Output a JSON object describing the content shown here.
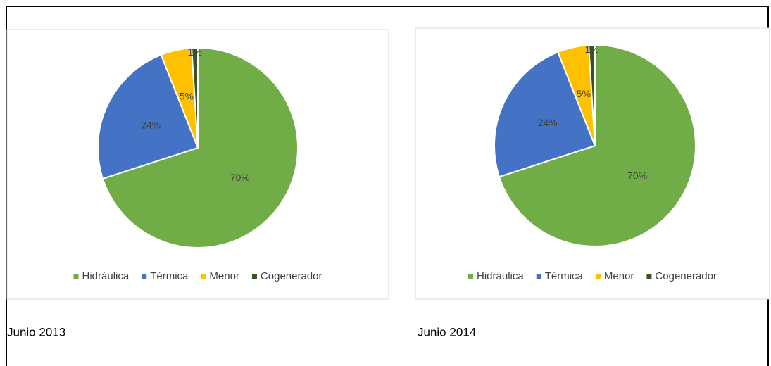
{
  "chart_data": [
    {
      "type": "pie",
      "categories": [
        "Hidráulica",
        "Térmica",
        "Menor",
        "Cogenerador"
      ],
      "values": [
        70,
        24,
        5,
        1
      ],
      "value_labels": [
        "70%",
        "24%",
        "5%",
        "1%"
      ],
      "colors": [
        "#70ad47",
        "#4472c4",
        "#ffc000",
        "#375623"
      ],
      "legend": "bottom",
      "caption": "Junio 2013"
    },
    {
      "type": "pie",
      "categories": [
        "Hidráulica",
        "Térmica",
        "Menor",
        "Cogenerador"
      ],
      "values": [
        70,
        24,
        5,
        1
      ],
      "value_labels": [
        "70%",
        "24%",
        "5%",
        "1%"
      ],
      "colors": [
        "#70ad47",
        "#4472c4",
        "#ffc000",
        "#375623"
      ],
      "legend": "bottom",
      "caption": "Junio 2014"
    }
  ]
}
